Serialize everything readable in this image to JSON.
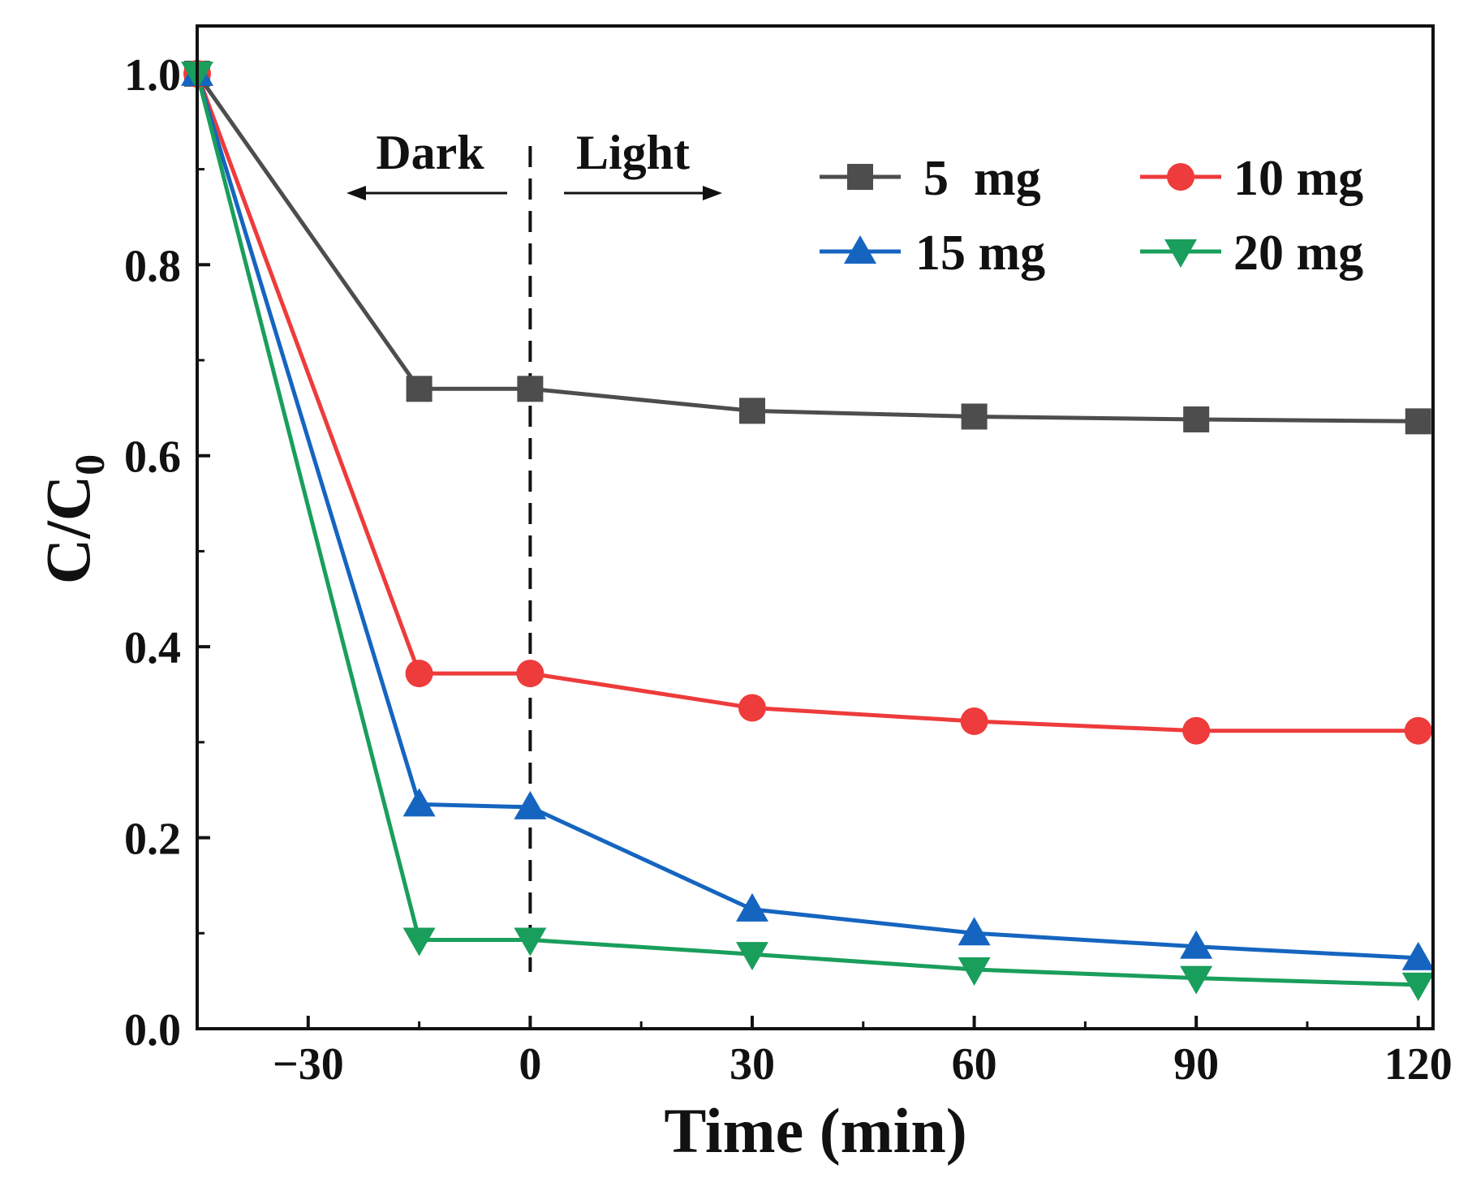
{
  "chart_data": {
    "type": "line",
    "xlabel": "Time (min)",
    "ylabel_main": "C/C",
    "ylabel_sub": "0",
    "xlim": [
      -45,
      122
    ],
    "ylim": [
      0.0,
      1.05
    ],
    "xticks": [
      -30,
      0,
      30,
      60,
      90,
      120
    ],
    "xtick_labels": [
      "−30",
      "0",
      "30",
      "60",
      "90",
      "120"
    ],
    "xminor": [
      -15,
      15,
      45,
      75,
      105
    ],
    "yticks": [
      0.0,
      0.2,
      0.4,
      0.6,
      0.8,
      1.0
    ],
    "ytick_labels": [
      "0.0",
      "0.2",
      "0.4",
      "0.6",
      "0.8",
      "1.0"
    ],
    "yminor": [
      0.1,
      0.3,
      0.5,
      0.7,
      0.9
    ],
    "x": [
      -45,
      -15,
      0,
      30,
      60,
      90,
      120
    ],
    "series": [
      {
        "name": "5  mg",
        "color": "#4d4d4d",
        "marker": "square",
        "values": [
          1.0,
          0.67,
          0.67,
          0.647,
          0.641,
          0.638,
          0.636
        ]
      },
      {
        "name": "10 mg",
        "color": "#ee3b3b",
        "marker": "circle",
        "values": [
          1.0,
          0.372,
          0.372,
          0.336,
          0.322,
          0.312,
          0.312
        ]
      },
      {
        "name": "15 mg",
        "color": "#1565c0",
        "marker": "triangle-up",
        "values": [
          1.0,
          0.235,
          0.232,
          0.125,
          0.1,
          0.086,
          0.074
        ]
      },
      {
        "name": "20 mg",
        "color": "#1a9e5c",
        "marker": "triangle-down",
        "values": [
          1.0,
          0.093,
          0.093,
          0.078,
          0.062,
          0.053,
          0.046
        ]
      }
    ],
    "divider_x": 0,
    "annotations": {
      "dark": "Dark",
      "light": "Light"
    },
    "legend_position": "top-right",
    "grid": false
  }
}
